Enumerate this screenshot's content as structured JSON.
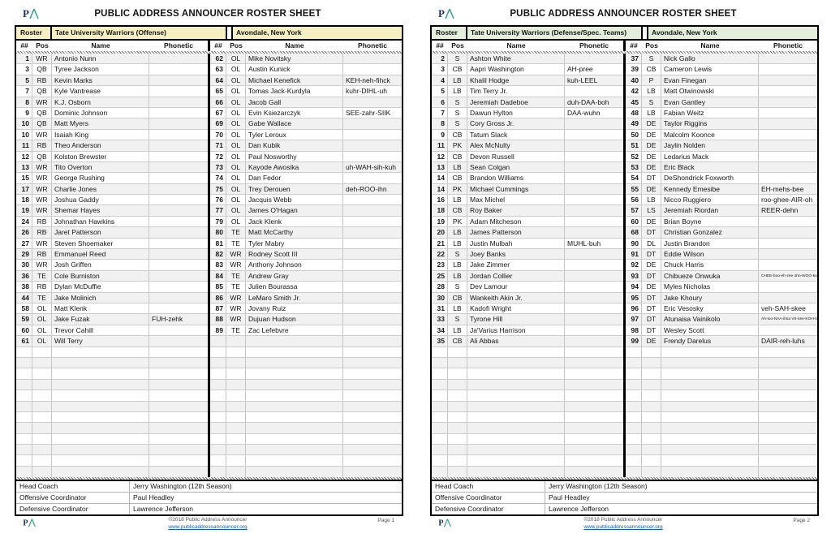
{
  "accent": {
    "offense_band": "#f5efc2",
    "defense_band": "#e3efda",
    "stripe": "#f1f1f1",
    "link_blue": "#0b5cc0"
  },
  "logo_name": "public-address-announcer-logo",
  "pages": [
    {
      "title": "PUBLIC ADDRESS ANNOUNCER ROSTER SHEET",
      "band": {
        "roster_label": "Roster",
        "team": "Tate University Warriors (Offense)",
        "opponent": "Avondale, New York",
        "color": "#f5efc2"
      },
      "columns": [
        "##",
        "Pos",
        "Name",
        "Phonetic"
      ],
      "groups": [
        [
          [
            "1",
            "WR",
            "Antonio Nunn",
            ""
          ],
          [
            "3",
            "QB",
            "Tyree Jackson",
            ""
          ],
          [
            "5",
            "RB",
            "Kevin Marks",
            ""
          ],
          [
            "7",
            "QB",
            "Kyle Vantrease",
            ""
          ],
          [
            "8",
            "WR",
            "K.J. Osborn",
            ""
          ],
          [
            "9",
            "QB",
            "Dominic Johnson",
            ""
          ],
          [
            "10",
            "QB",
            "Matt Myers",
            ""
          ],
          [
            "10",
            "WR",
            "Isaiah King",
            ""
          ],
          [
            "11",
            "RB",
            "Theo Anderson",
            ""
          ],
          [
            "12",
            "QB",
            "Kolston Brewster",
            ""
          ],
          [
            "13",
            "WR",
            "Tito Overton",
            ""
          ],
          [
            "15",
            "WR",
            "George Rushing",
            ""
          ],
          [
            "17",
            "WR",
            "Charlie Jones",
            ""
          ],
          [
            "18",
            "WR",
            "Joshua Gaddy",
            ""
          ],
          [
            "19",
            "WR",
            "Shemar Hayes",
            ""
          ],
          [
            "24",
            "RB",
            "Johnathan Hawkins",
            ""
          ],
          [
            "26",
            "RB",
            "Jaret Patterson",
            ""
          ],
          [
            "27",
            "WR",
            "Steven Shoemaker",
            ""
          ],
          [
            "29",
            "RB",
            "Emmanuel Reed",
            ""
          ],
          [
            "30",
            "WR",
            "Josh Griffen",
            ""
          ],
          [
            "36",
            "TE",
            "Cole Burniston",
            ""
          ],
          [
            "38",
            "RB",
            "Dylan McDuffie",
            ""
          ],
          [
            "44",
            "TE",
            "Jake Molinich",
            ""
          ],
          [
            "58",
            "OL",
            "Matt Klenk",
            ""
          ],
          [
            "59",
            "OL",
            "Jake Fuzak",
            "FUH-zehk"
          ],
          [
            "60",
            "OL",
            "Trevor Cahill",
            ""
          ],
          [
            "61",
            "OL",
            "Will Terry",
            ""
          ]
        ],
        [
          [
            "62",
            "OL",
            "Mike Novitsky",
            ""
          ],
          [
            "63",
            "OL",
            "Austin Kunick",
            ""
          ],
          [
            "64",
            "OL",
            "Michael Kenefick",
            "KEH-neh-fihck"
          ],
          [
            "65",
            "OL",
            "Tomas Jack-Kurdyla",
            "kuhr-DIHL-uh"
          ],
          [
            "66",
            "OL",
            "Jacob Gall",
            ""
          ],
          [
            "67",
            "OL",
            "Evin Ksiezarczyk",
            "SEE-zahr-SIIK"
          ],
          [
            "69",
            "OL",
            "Gabe Wallace",
            ""
          ],
          [
            "70",
            "OL",
            "Tyler Leroux",
            ""
          ],
          [
            "71",
            "OL",
            "Dan Kubik",
            ""
          ],
          [
            "72",
            "OL",
            "Paul Nosworthy",
            ""
          ],
          [
            "73",
            "OL",
            "Kayode Awosika",
            "uh-WAH-sih-kuh"
          ],
          [
            "74",
            "OL",
            "Dan Fedor",
            ""
          ],
          [
            "75",
            "OL",
            "Trey Derouen",
            "deh-ROO-ihn"
          ],
          [
            "76",
            "OL",
            "Jacquis Webb",
            ""
          ],
          [
            "77",
            "OL",
            "James O'Hagan",
            ""
          ],
          [
            "79",
            "OL",
            "Jack Klenk",
            ""
          ],
          [
            "80",
            "TE",
            "Matt McCarthy",
            ""
          ],
          [
            "81",
            "TE",
            "Tyler Mabry",
            ""
          ],
          [
            "82",
            "WR",
            "Rodney Scott III",
            ""
          ],
          [
            "83",
            "WR",
            "Anthony Johnson",
            ""
          ],
          [
            "84",
            "TE",
            "Andrew Gray",
            ""
          ],
          [
            "85",
            "TE",
            "Julien Bourassa",
            ""
          ],
          [
            "86",
            "WR",
            "LeMaro Smith Jr.",
            ""
          ],
          [
            "87",
            "WR",
            "Jovany Ruiz",
            ""
          ],
          [
            "88",
            "WR",
            "Dujuan Hudson",
            ""
          ],
          [
            "89",
            "TE",
            "Zac Lefebvre",
            ""
          ]
        ]
      ],
      "staff": [
        {
          "label": "Head Coach",
          "value": "Jerry Washington (12th Season)"
        },
        {
          "label": "Offensive Coordinator",
          "value": "Paul Headley"
        },
        {
          "label": "Defensive Coordinator",
          "value": "Lawrence Jefferson"
        }
      ],
      "footer": {
        "copyright": "©2018 Public Address Announcer",
        "link": "www.publicaddressannouncer.org",
        "page_label": "Page 1"
      }
    },
    {
      "title": "PUBLIC ADDRESS ANNOUNCER ROSTER SHEET",
      "band": {
        "roster_label": "Roster",
        "team": "Tate University Warriors (Defense/Spec. Teams)",
        "opponent": "Avondale, New York",
        "color": "#e3efda"
      },
      "columns": [
        "##",
        "Pos",
        "Name",
        "Phonetic"
      ],
      "groups": [
        [
          [
            "2",
            "S",
            "Ashton White",
            ""
          ],
          [
            "3",
            "CB",
            "Aapri Washington",
            "AH-pree"
          ],
          [
            "4",
            "LB",
            "Khalil Hodge",
            "kuh-LEEL"
          ],
          [
            "5",
            "LB",
            "Tim Terry Jr.",
            ""
          ],
          [
            "6",
            "S",
            "Jeremiah Dadeboe",
            "duh-DAA-boh"
          ],
          [
            "7",
            "S",
            "Dawun Hylton",
            "DAA-wuhn"
          ],
          [
            "8",
            "S",
            "Cory Gross Jr.",
            ""
          ],
          [
            "9",
            "CB",
            "Tatum Slack",
            ""
          ],
          [
            "11",
            "PK",
            "Alex McNulty",
            ""
          ],
          [
            "12",
            "CB",
            "Devon Russell",
            ""
          ],
          [
            "13",
            "LB",
            "Sean Colgan",
            ""
          ],
          [
            "14",
            "CB",
            "Brandon Williams",
            ""
          ],
          [
            "14",
            "PK",
            "Michael Cummings",
            ""
          ],
          [
            "16",
            "LB",
            "Max Michel",
            ""
          ],
          [
            "18",
            "CB",
            "Roy Baker",
            ""
          ],
          [
            "19",
            "PK",
            "Adam Mitcheson",
            ""
          ],
          [
            "20",
            "LB",
            "James Patterson",
            ""
          ],
          [
            "21",
            "LB",
            "Justin Mulbah",
            "MUHL-buh"
          ],
          [
            "22",
            "S",
            "Joey Banks",
            ""
          ],
          [
            "23",
            "LB",
            "Jake Zimmer",
            ""
          ],
          [
            "25",
            "LB",
            "Jordan Collier",
            ""
          ],
          [
            "28",
            "S",
            "Dev Lamour",
            ""
          ],
          [
            "30",
            "CB",
            "Wankeith Akin Jr.",
            ""
          ],
          [
            "31",
            "LB",
            "Kadofi Wright",
            ""
          ],
          [
            "33",
            "S",
            "Tyrone Hill",
            ""
          ],
          [
            "34",
            "LB",
            "Ja'Varius Harrison",
            ""
          ],
          [
            "35",
            "CB",
            "Ali Abbas",
            ""
          ]
        ],
        [
          [
            "37",
            "S",
            "Nick Gallo",
            ""
          ],
          [
            "39",
            "CB",
            "Cameron Lewis",
            ""
          ],
          [
            "40",
            "P",
            "Evan Finegan",
            ""
          ],
          [
            "42",
            "LB",
            "Matt Otwinowski",
            ""
          ],
          [
            "45",
            "S",
            "Evan Gantley",
            ""
          ],
          [
            "48",
            "LB",
            "Fabian Weitz",
            ""
          ],
          [
            "49",
            "DE",
            "Taylor Riggins",
            ""
          ],
          [
            "50",
            "DE",
            "Malcolm Koonce",
            ""
          ],
          [
            "51",
            "DE",
            "Jaylin Nolden",
            ""
          ],
          [
            "52",
            "DE",
            "Ledarius Mack",
            ""
          ],
          [
            "53",
            "DE",
            "Eric Black",
            ""
          ],
          [
            "54",
            "DT",
            "DeShondrick Foxworth",
            ""
          ],
          [
            "55",
            "DE",
            "Kennedy Emesibe",
            "EH-mehs-bee"
          ],
          [
            "56",
            "LB",
            "Nicco Ruggiero",
            "roo-ghee-AIR-oh"
          ],
          [
            "57",
            "LS",
            "Jeremiah Riordan",
            "REER-dehn"
          ],
          [
            "60",
            "DE",
            "Brian Boyne",
            ""
          ],
          [
            "68",
            "DT",
            "Christian Gonzalez",
            ""
          ],
          [
            "90",
            "DL",
            "Justin Brandon",
            ""
          ],
          [
            "91",
            "DT",
            "Eddie Wilson",
            ""
          ],
          [
            "92",
            "DE",
            "Chuck Harris",
            ""
          ],
          [
            "93",
            "DT",
            "Chibueze Onwuka",
            "CHEE-boo-eh-zee ohn-WOO-kuh",
            1
          ],
          [
            "94",
            "DE",
            "Myles Nicholas",
            ""
          ],
          [
            "95",
            "DT",
            "Jake Khoury",
            ""
          ],
          [
            "96",
            "DT",
            "Eric Vesosky",
            "veh-SAH-skee"
          ],
          [
            "97",
            "DT",
            "Atunaisa Vainikolo",
            "Ah-too-NAA-ihsa VII-nee-KOH-loh",
            1
          ],
          [
            "98",
            "DT",
            "Wesley Scott",
            ""
          ],
          [
            "99",
            "DE",
            "Frendy Darelus",
            "DAIR-reh-luhs"
          ]
        ]
      ],
      "staff": [
        {
          "label": "Head Coach",
          "value": "Jerry Washington (12th Season)"
        },
        {
          "label": "Offensive Coordinator",
          "value": "Paul Headley"
        },
        {
          "label": "Defensive Coordinator",
          "value": "Lawrence Jefferson"
        }
      ],
      "footer": {
        "copyright": "©2018 Public Address Announcer",
        "link": "www.publicaddressannouncer.org",
        "page_label": "Page 2"
      }
    }
  ]
}
